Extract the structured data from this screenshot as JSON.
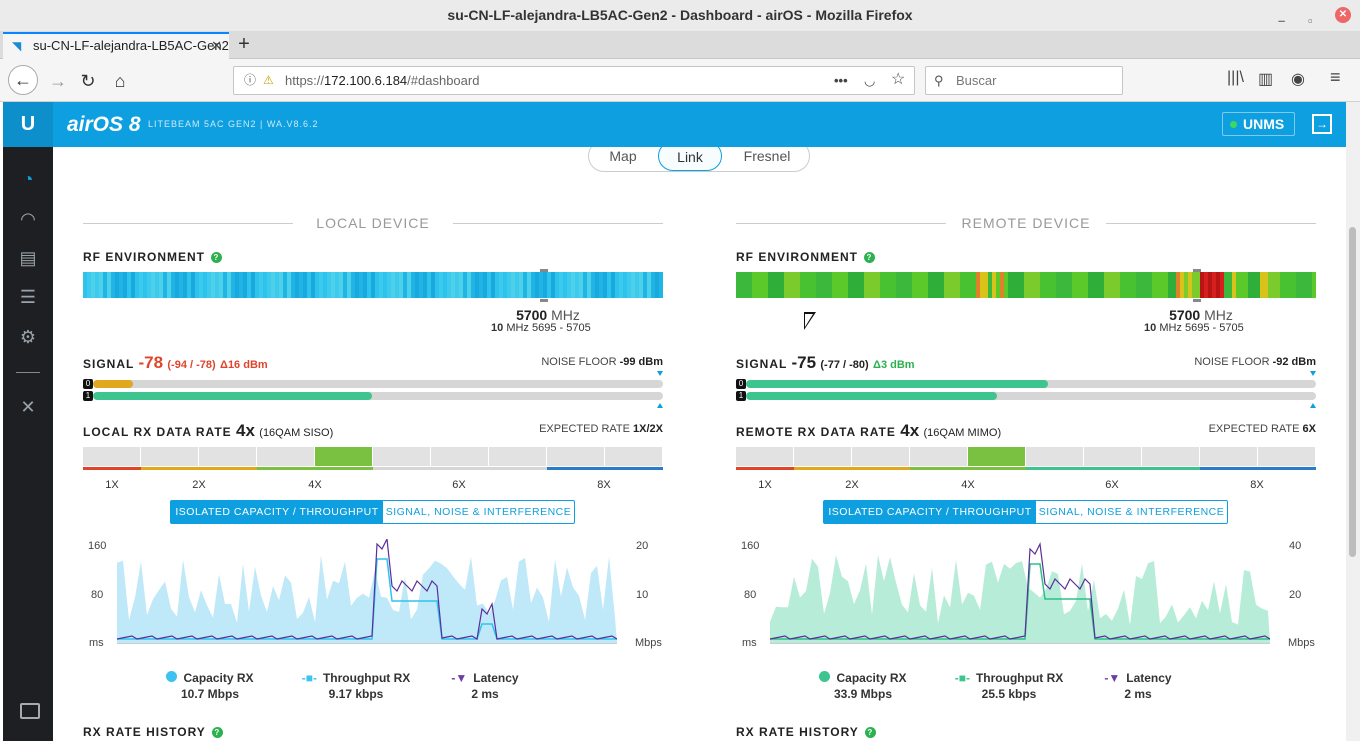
{
  "window": {
    "title": "su-CN-LF-alejandra-LB5AC-Gen2 - Dashboard - airOS - Mozilla Firefox"
  },
  "browser": {
    "tab_title": "su-CN-LF-alejandra-LB5AC-Gen2",
    "url_prefix": "https://",
    "url_host": "172.100.6.184",
    "url_path": "/#dashboard",
    "search_placeholder": "Buscar"
  },
  "app": {
    "brand": "airOS 8",
    "model": "LITEBEAM 5AC GEN2 | WA.V8.6.2",
    "unms": "UNMS",
    "accent": "#0e9fe0"
  },
  "view_tabs": [
    "Map",
    "Link",
    "Fresnel"
  ],
  "local": {
    "section": "LOCAL DEVICE",
    "rf_label": "RF ENVIRONMENT",
    "freq": "5700",
    "freq_unit": "MHz",
    "width": "10",
    "width_unit": "MHz",
    "range": "5695 - 5705",
    "signal_label": "SIGNAL",
    "signal": "-78",
    "signal_sub": "(-94 / -78)",
    "delta": "Δ16 dBm",
    "noise_label": "NOISE FLOOR",
    "noise": "-99 dBm",
    "chain0_pct": 7,
    "chain1_pct": 49,
    "rate_label": "LOCAL RX DATA RATE",
    "rate": "4x",
    "rate_sub": "(16QAM SISO)",
    "exp_label": "EXPECTED RATE",
    "exp": "1X/2X",
    "rates": [
      "1X",
      "2X",
      "4X",
      "6X",
      "8X"
    ],
    "tab_active": "ISOLATED CAPACITY / THROUGHPUT",
    "tab_other": "SIGNAL, NOISE & INTERFERENCE",
    "y_left": [
      "160",
      "80",
      "ms"
    ],
    "y_right": [
      "20",
      "10",
      "Mbps"
    ],
    "legend": [
      {
        "name": "Capacity RX",
        "value": "10.7 Mbps"
      },
      {
        "name": "Throughput RX",
        "value": "9.17 kbps"
      },
      {
        "name": "Latency",
        "value": "2 ms"
      }
    ],
    "history": "RX RATE HISTORY"
  },
  "remote": {
    "section": "REMOTE DEVICE",
    "rf_label": "RF ENVIRONMENT",
    "freq": "5700",
    "freq_unit": "MHz",
    "width": "10",
    "width_unit": "MHz",
    "range": "5695 - 5705",
    "signal_label": "SIGNAL",
    "signal": "-75",
    "signal_sub": "(-77 / -80)",
    "delta": "Δ3 dBm",
    "noise_label": "NOISE FLOOR",
    "noise": "-92 dBm",
    "chain0_pct": 53,
    "chain1_pct": 44,
    "rate_label": "REMOTE RX DATA RATE",
    "rate": "4x",
    "rate_sub": "(16QAM MIMO)",
    "exp_label": "EXPECTED RATE",
    "exp": "6X",
    "rates": [
      "1X",
      "2X",
      "4X",
      "6X",
      "8X"
    ],
    "tab_active": "ISOLATED CAPACITY / THROUGHPUT",
    "tab_other": "SIGNAL, NOISE & INTERFERENCE",
    "y_left": [
      "160",
      "80",
      "ms"
    ],
    "y_right": [
      "40",
      "20",
      "Mbps"
    ],
    "legend": [
      {
        "name": "Capacity RX",
        "value": "33.9 Mbps"
      },
      {
        "name": "Throughput RX",
        "value": "25.5 kbps"
      },
      {
        "name": "Latency",
        "value": "2 ms"
      }
    ],
    "history": "RX RATE HISTORY"
  }
}
